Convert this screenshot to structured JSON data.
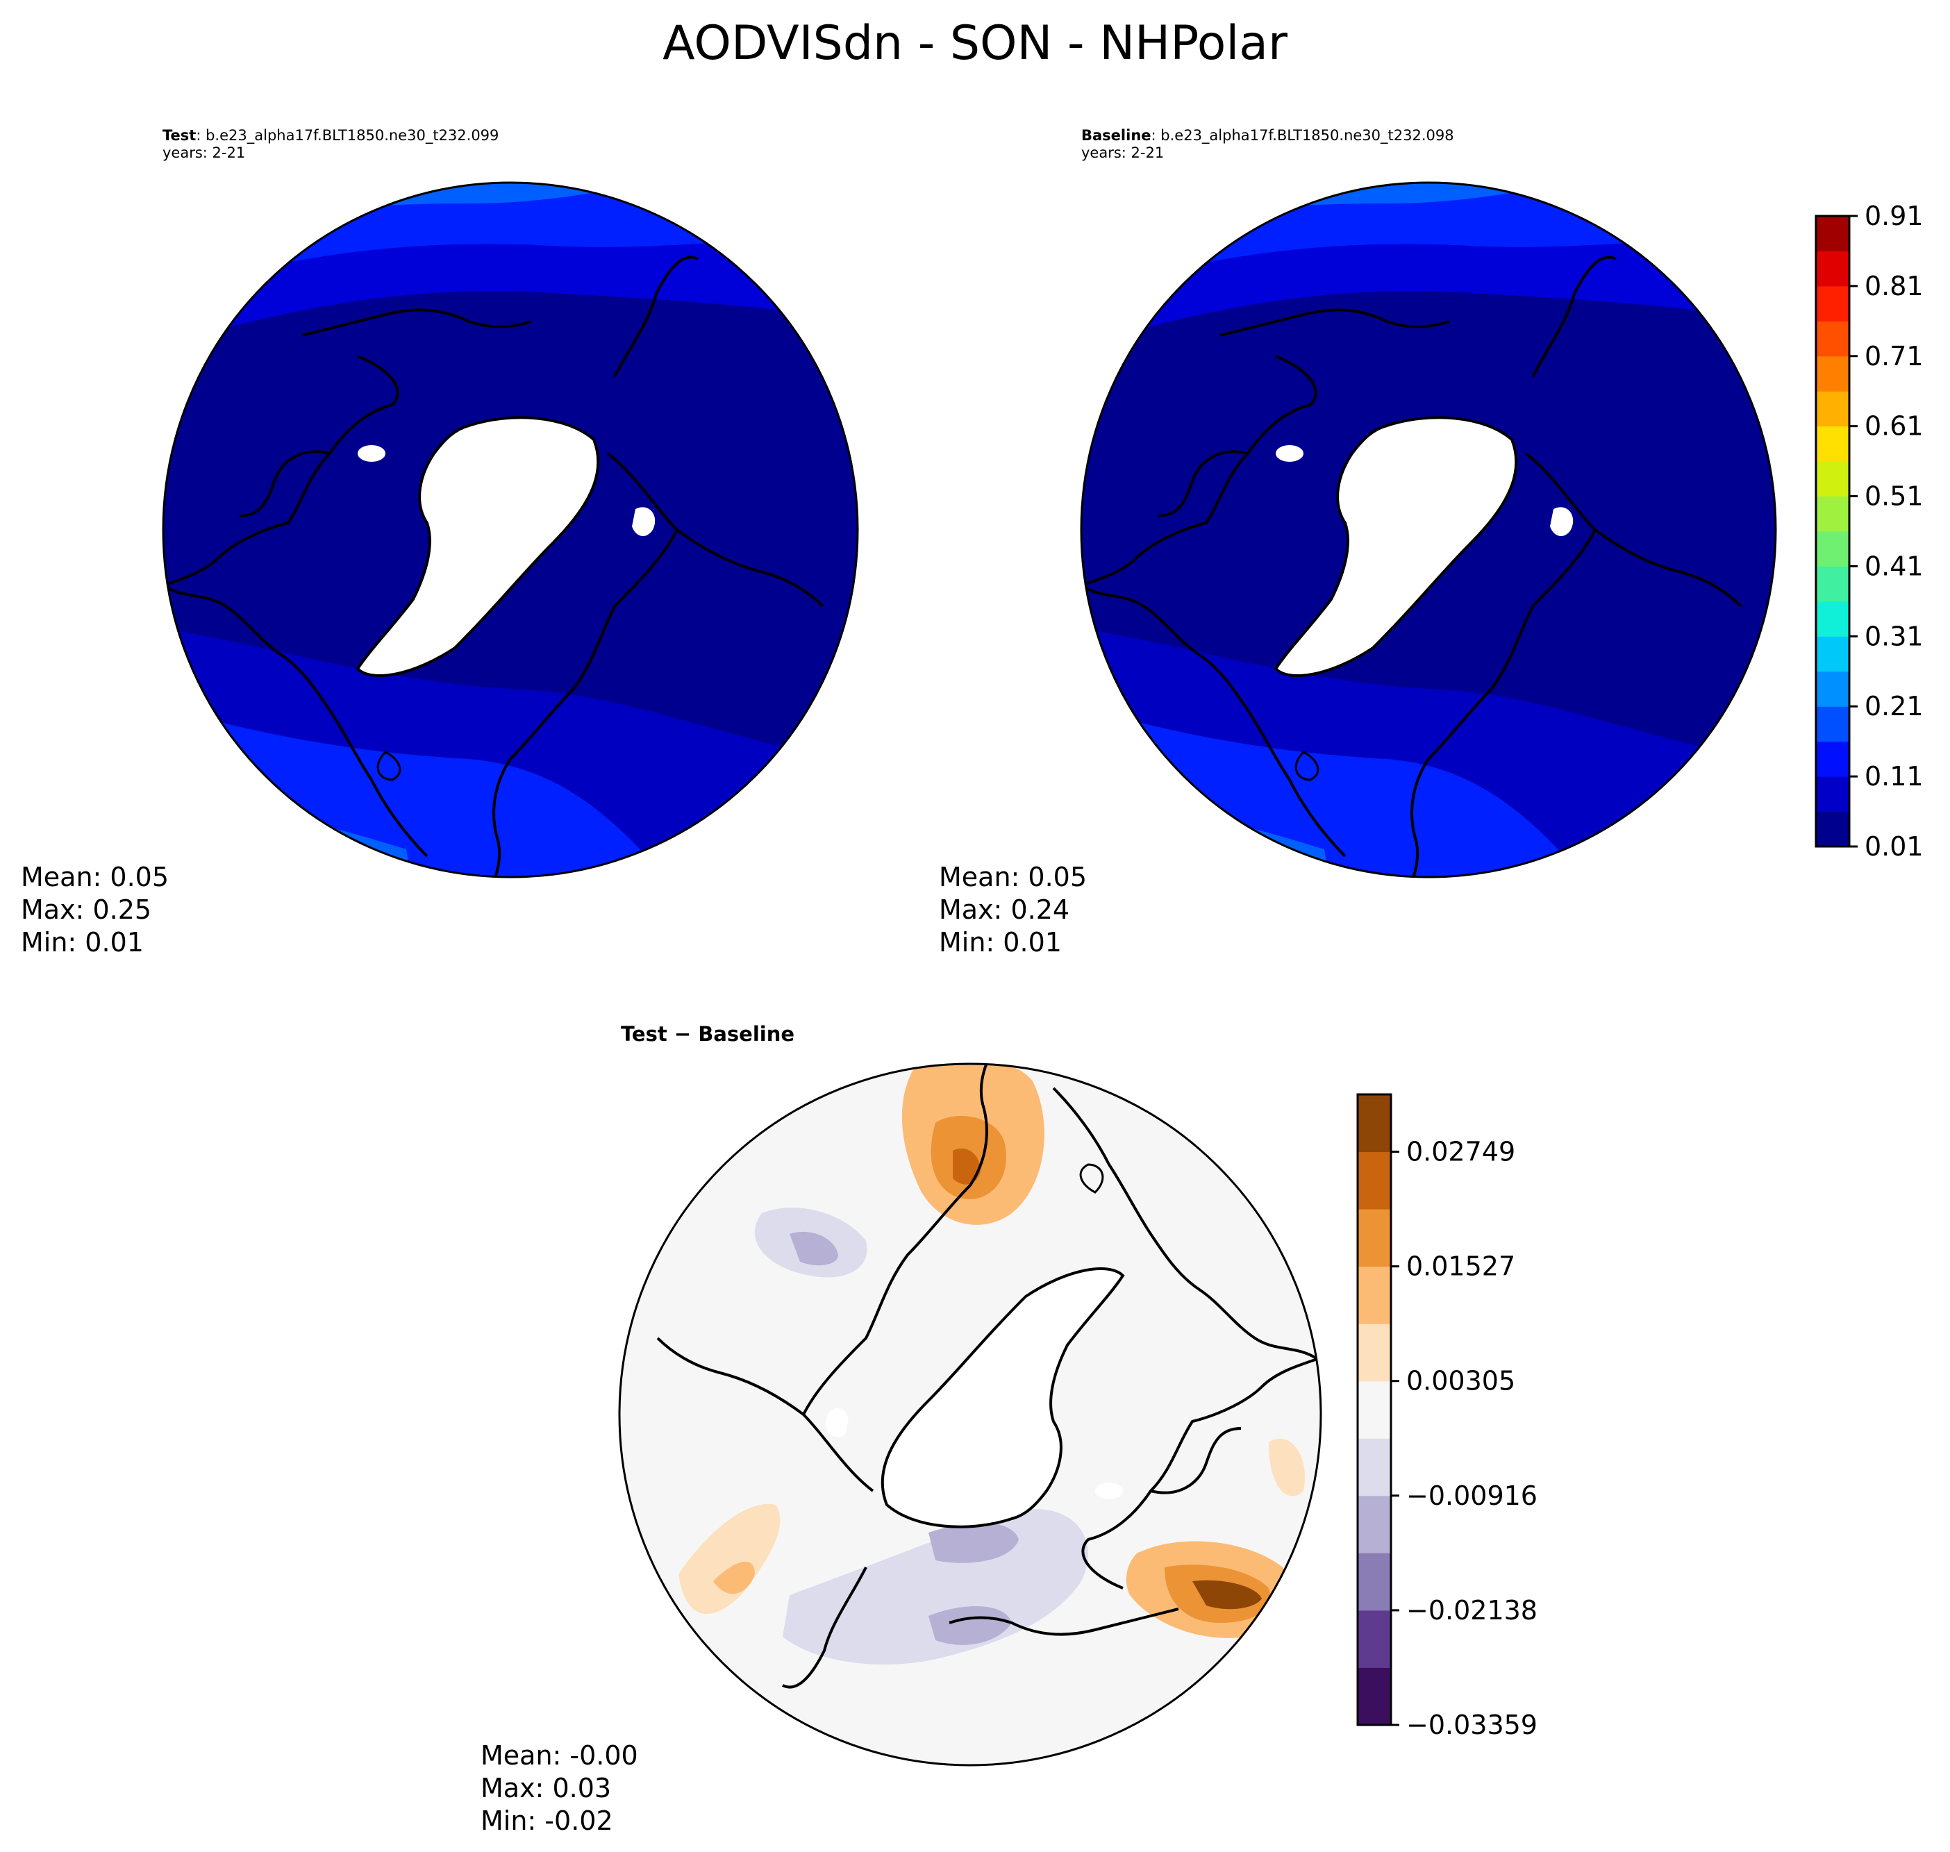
{
  "figure": {
    "title": "AODVISdn - SON - NHPolar"
  },
  "panels": {
    "test": {
      "label": "Test",
      "case": "b.e23_alpha17f.BLT1850.ne30_t232.099",
      "years": "years: 2-21",
      "stats": {
        "mean": "Mean:  0.05",
        "max": "Max:  0.25",
        "min": "Min:  0.01"
      }
    },
    "baseline": {
      "label": "Baseline",
      "case": "b.e23_alpha17f.BLT1850.ne30_t232.098",
      "years": "years: 2-21",
      "stats": {
        "mean": "Mean:  0.05",
        "max": "Max:  0.24",
        "min": "Min:  0.01"
      }
    },
    "difference": {
      "title": "Test − Baseline",
      "stats": {
        "mean": "Mean: -0.00",
        "max": "Max:  0.03",
        "min": "Min: -0.02"
      }
    }
  },
  "colorbars": {
    "main": {
      "ticks": [
        "0.01",
        "0.11",
        "0.21",
        "0.31",
        "0.41",
        "0.51",
        "0.61",
        "0.71",
        "0.81",
        "0.91"
      ],
      "colors": [
        "#00008f",
        "#0000c8",
        "#0010ff",
        "#0050ff",
        "#0090ff",
        "#00c8f8",
        "#10f0d8",
        "#40f0a0",
        "#70f070",
        "#a0f040",
        "#d0f010",
        "#ffe000",
        "#ffb000",
        "#ff8000",
        "#ff5000",
        "#ff2000",
        "#e00000",
        "#a00000"
      ]
    },
    "diff": {
      "ticks": [
        "−0.03359",
        "−0.02138",
        "−0.00916",
        "0.00305",
        "0.01527",
        "0.02749"
      ],
      "colors": [
        "#3b0f5e",
        "#5e3b8f",
        "#8a7cb4",
        "#b6b0d4",
        "#dcdcec",
        "#f6f6f6",
        "#fde0bd",
        "#fcbb74",
        "#ec9336",
        "#c9650e",
        "#8e4606"
      ]
    }
  }
}
